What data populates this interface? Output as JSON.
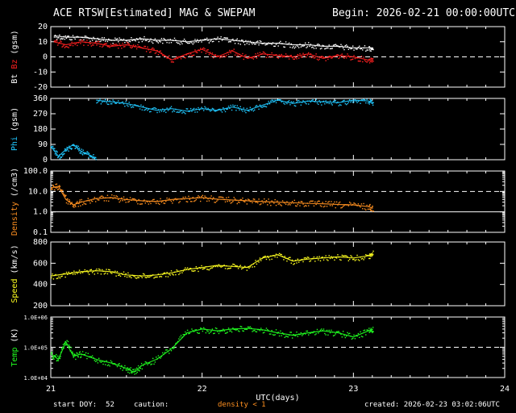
{
  "header": {
    "title": "ACE RTSW[Estimated] MAG & SWEPAM",
    "begin": "Begin: 2026-02-21 00:00:00UTC"
  },
  "footer": {
    "start_doy": "start DOY:  52",
    "caution": "caution:",
    "density_note": "density < 1",
    "created": "created: 2026-02-23 03:02:06UTC"
  },
  "colors": {
    "bt": "#ffffff",
    "bz": "#ff2020",
    "phi": "#20c8ff",
    "density": "#ff9020",
    "speed": "#ffff20",
    "temp": "#20ff20",
    "axis": "#ffffff",
    "background": "#000000"
  },
  "chart_data": {
    "type": "scatter",
    "x_axis": {
      "label": "UTC(days)",
      "ticks": [
        "21",
        "22",
        "23",
        "24"
      ],
      "range": [
        21,
        24
      ]
    },
    "data_end_day": 23.13,
    "panels": [
      {
        "id": "mag",
        "ylabel_parts": [
          "Bt",
          "Bz",
          "(gsm)"
        ],
        "ylim": [
          -20,
          20
        ],
        "ticks": [
          "20",
          "10",
          "0",
          "-10",
          "-20"
        ],
        "tick_values": [
          20,
          10,
          0,
          -10,
          -20
        ],
        "dashed_at": [
          0
        ],
        "series": [
          {
            "name": "Bt",
            "color_key": "bt",
            "x": [
              21.02,
              21.1,
              21.2,
              21.3,
              21.4,
              21.5,
              21.6,
              21.7,
              21.8,
              21.9,
              22.0,
              22.1,
              22.2,
              22.3,
              22.4,
              22.5,
              22.6,
              22.7,
              22.8,
              22.9,
              23.0,
              23.1,
              23.13
            ],
            "y": [
              14,
              13,
              13,
              12,
              11,
              11,
              12,
              11,
              11,
              10,
              11,
              12,
              11,
              10,
              9,
              9,
              8,
              8,
              7,
              7,
              6,
              6,
              6
            ]
          },
          {
            "name": "Bz",
            "color_key": "bz",
            "x": [
              21.02,
              21.1,
              21.2,
              21.3,
              21.4,
              21.5,
              21.6,
              21.7,
              21.8,
              21.9,
              22.0,
              22.1,
              22.2,
              22.3,
              22.4,
              22.5,
              22.6,
              22.7,
              22.8,
              22.9,
              23.0,
              23.1,
              23.13
            ],
            "y": [
              10,
              8,
              10,
              9,
              7,
              8,
              6,
              4,
              -2,
              2,
              5,
              0,
              4,
              -1,
              2,
              1,
              0,
              2,
              -1,
              1,
              0,
              -2,
              -1
            ]
          }
        ]
      },
      {
        "id": "phi",
        "ylabel_parts": [
          "Phi",
          "(gsm)"
        ],
        "ylim": [
          0,
          360
        ],
        "ticks": [
          "360",
          "270",
          "180",
          "90",
          "0"
        ],
        "tick_values": [
          360,
          270,
          180,
          90,
          0
        ],
        "dashed_at": [],
        "series": [
          {
            "name": "Phi-high",
            "color_key": "phi",
            "x": [
              21.3,
              21.4,
              21.5,
              21.6,
              21.7,
              21.8,
              21.9,
              22.0,
              22.1,
              22.2,
              22.3,
              22.4,
              22.5,
              22.6,
              22.7,
              22.8,
              22.9,
              23.0,
              23.1,
              23.13
            ],
            "y": [
              350,
              340,
              330,
              310,
              290,
              300,
              285,
              300,
              290,
              310,
              290,
              320,
              350,
              330,
              345,
              340,
              335,
              350,
              345,
              330
            ]
          },
          {
            "name": "Phi-low",
            "color_key": "phi",
            "x": [
              21.0,
              21.05,
              21.1,
              21.15,
              21.2,
              21.25,
              21.3
            ],
            "y": [
              80,
              20,
              60,
              90,
              50,
              30,
              10
            ]
          }
        ]
      },
      {
        "id": "density",
        "ylabel_parts": [
          "Density",
          "(/cm3)"
        ],
        "log": true,
        "ylim": [
          0.1,
          100
        ],
        "ticks": [
          "100.0",
          "10.0",
          "1.0",
          "0.1"
        ],
        "tick_values": [
          100,
          10,
          1,
          0.1
        ],
        "dashed_at": [
          10
        ],
        "solid_at": [
          1
        ],
        "series": [
          {
            "name": "Density",
            "color_key": "density",
            "x": [
              21.0,
              21.05,
              21.1,
              21.15,
              21.2,
              21.3,
              21.4,
              21.5,
              21.6,
              21.7,
              21.8,
              21.9,
              22.0,
              22.1,
              22.2,
              22.3,
              22.4,
              22.5,
              22.6,
              22.7,
              22.8,
              22.9,
              23.0,
              23.1,
              23.13
            ],
            "y": [
              15,
              18,
              4,
              2.2,
              3,
              4.5,
              5,
              4,
              3.5,
              3.2,
              4,
              4.5,
              5,
              4.2,
              3.8,
              3.5,
              3.2,
              3,
              2.8,
              2.6,
              2.5,
              2.3,
              2.2,
              1.8,
              1.5
            ]
          }
        ]
      },
      {
        "id": "speed",
        "ylabel_parts": [
          "Speed",
          "(km/s)"
        ],
        "ylim": [
          200,
          800
        ],
        "ticks": [
          "800",
          "600",
          "400",
          "200"
        ],
        "tick_values": [
          800,
          600,
          400,
          200
        ],
        "dashed_at": [],
        "series": [
          {
            "name": "Speed",
            "color_key": "speed",
            "x": [
              21.0,
              21.1,
              21.2,
              21.3,
              21.4,
              21.5,
              21.6,
              21.7,
              21.8,
              21.9,
              22.0,
              22.1,
              22.2,
              22.3,
              22.4,
              22.5,
              22.6,
              22.7,
              22.8,
              22.9,
              23.0,
              23.1,
              23.13
            ],
            "y": [
              480,
              500,
              520,
              530,
              520,
              490,
              480,
              490,
              510,
              540,
              560,
              580,
              570,
              560,
              650,
              680,
              620,
              640,
              650,
              660,
              650,
              670,
              700
            ]
          }
        ]
      },
      {
        "id": "temp",
        "ylabel_parts": [
          "Temp",
          "(K)"
        ],
        "log": true,
        "ylim": [
          10000,
          1000000
        ],
        "ticks": [
          "1.0E+06",
          "1.0E+05",
          "1.0E+04"
        ],
        "tick_values": [
          1000000,
          100000,
          10000
        ],
        "dashed_at": [
          100000
        ],
        "series": [
          {
            "name": "Temp",
            "color_key": "temp",
            "x": [
              21.0,
              21.05,
              21.1,
              21.15,
              21.2,
              21.3,
              21.4,
              21.5,
              21.55,
              21.6,
              21.7,
              21.8,
              21.9,
              22.0,
              22.1,
              22.2,
              22.3,
              22.4,
              22.5,
              22.6,
              22.7,
              22.8,
              22.9,
              23.0,
              23.1,
              23.13
            ],
            "y": [
              60000,
              40000,
              150000,
              50000,
              60000,
              40000,
              30000,
              20000,
              15000,
              25000,
              40000,
              90000,
              300000,
              400000,
              350000,
              400000,
              420000,
              380000,
              300000,
              250000,
              300000,
              350000,
              300000,
              220000,
              350000,
              400000
            ]
          }
        ]
      }
    ]
  }
}
